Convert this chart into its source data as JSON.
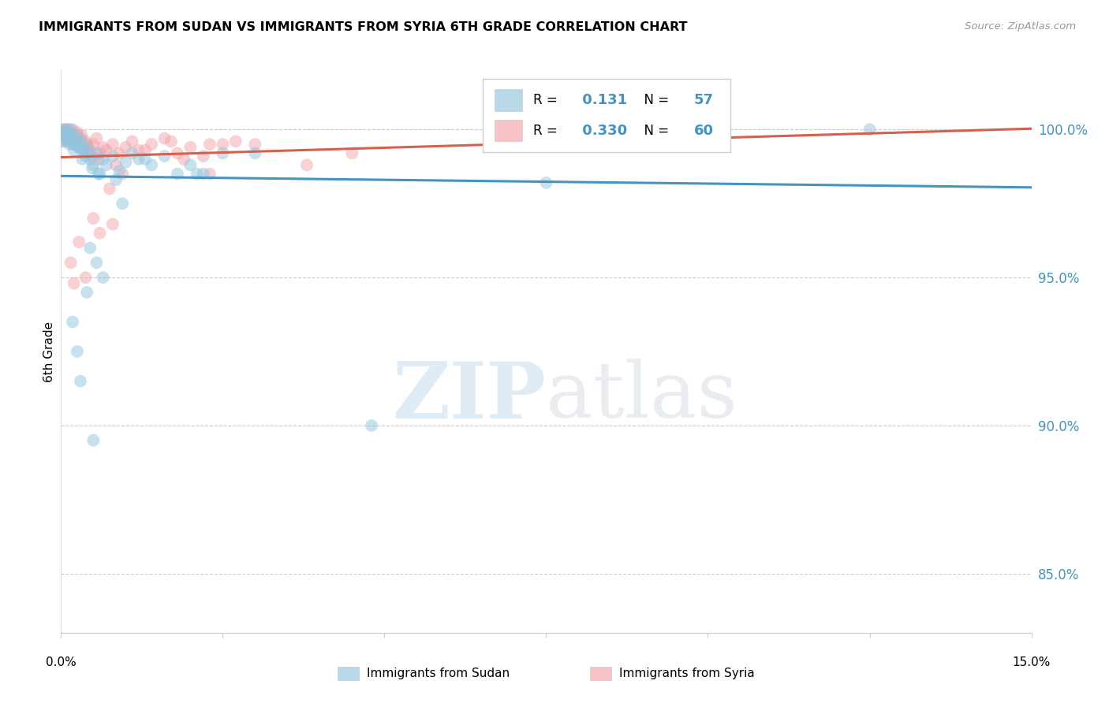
{
  "title": "IMMIGRANTS FROM SUDAN VS IMMIGRANTS FROM SYRIA 6TH GRADE CORRELATION CHART",
  "source": "Source: ZipAtlas.com",
  "ylabel": "6th Grade",
  "xlim": [
    0.0,
    15.0
  ],
  "ylim": [
    83.0,
    102.0
  ],
  "yticks": [
    85.0,
    90.0,
    95.0,
    100.0
  ],
  "ytick_labels": [
    "85.0%",
    "90.0%",
    "95.0%",
    "100.0%"
  ],
  "sudan_color": "#92c5de",
  "syria_color": "#f4a3a8",
  "sudan_line_color": "#4393c3",
  "syria_line_color": "#d6604d",
  "R_sudan": 0.131,
  "N_sudan": 57,
  "R_syria": 0.33,
  "N_syria": 60,
  "sudan_scatter_x": [
    0.02,
    0.03,
    0.05,
    0.06,
    0.07,
    0.08,
    0.09,
    0.1,
    0.11,
    0.12,
    0.13,
    0.14,
    0.15,
    0.16,
    0.17,
    0.18,
    0.19,
    0.2,
    0.22,
    0.24,
    0.25,
    0.27,
    0.3,
    0.32,
    0.35,
    0.38,
    0.4,
    0.45,
    0.5,
    0.55,
    0.6,
    0.65,
    0.7,
    0.8,
    0.9,
    1.0,
    1.1,
    1.2,
    1.4,
    1.6,
    1.8,
    2.0,
    2.2,
    2.5,
    0.28,
    0.33,
    0.42,
    0.48,
    0.58,
    1.3,
    0.85,
    0.95,
    3.0,
    4.8,
    7.5,
    10.0,
    12.5
  ],
  "sudan_scatter_y": [
    99.6,
    99.8,
    100.0,
    99.9,
    99.7,
    99.8,
    100.0,
    99.6,
    99.8,
    99.9,
    99.5,
    99.7,
    100.0,
    99.8,
    99.6,
    99.7,
    99.5,
    99.3,
    99.5,
    99.6,
    99.8,
    99.4,
    99.5,
    99.6,
    99.3,
    99.1,
    99.4,
    99.0,
    98.8,
    99.2,
    98.5,
    99.0,
    98.8,
    99.1,
    98.6,
    98.9,
    99.2,
    99.0,
    98.8,
    99.1,
    98.5,
    98.8,
    98.5,
    99.2,
    99.4,
    99.0,
    99.2,
    98.7,
    98.5,
    99.0,
    98.3,
    97.5,
    99.2,
    90.0,
    98.2,
    99.5,
    100.0
  ],
  "sudan_outlier_x": [
    0.18,
    0.25,
    0.3,
    0.4,
    0.45,
    0.55,
    0.65,
    2.1,
    0.5
  ],
  "sudan_outlier_y": [
    93.5,
    92.5,
    91.5,
    94.5,
    96.0,
    95.5,
    95.0,
    98.5,
    89.5
  ],
  "syria_scatter_x": [
    0.02,
    0.03,
    0.05,
    0.06,
    0.07,
    0.08,
    0.09,
    0.1,
    0.11,
    0.12,
    0.13,
    0.14,
    0.15,
    0.16,
    0.17,
    0.18,
    0.19,
    0.2,
    0.22,
    0.24,
    0.25,
    0.27,
    0.3,
    0.32,
    0.35,
    0.38,
    0.4,
    0.45,
    0.5,
    0.55,
    0.6,
    0.65,
    0.7,
    0.8,
    0.9,
    1.0,
    1.1,
    1.2,
    1.4,
    1.6,
    1.8,
    2.0,
    2.2,
    2.5,
    0.28,
    0.33,
    0.42,
    0.48,
    0.58,
    1.3,
    0.85,
    0.95,
    3.0,
    4.5,
    8.5,
    1.7,
    2.3,
    2.7,
    3.8,
    0.75
  ],
  "syria_scatter_y": [
    99.8,
    100.0,
    99.6,
    99.9,
    100.0,
    99.8,
    99.7,
    99.9,
    100.0,
    99.6,
    99.8,
    99.9,
    99.7,
    99.8,
    99.6,
    100.0,
    99.5,
    99.7,
    99.8,
    99.6,
    99.9,
    99.5,
    99.7,
    99.8,
    99.4,
    99.6,
    99.5,
    99.3,
    99.5,
    99.7,
    99.2,
    99.4,
    99.3,
    99.5,
    99.2,
    99.4,
    99.6,
    99.3,
    99.5,
    99.7,
    99.2,
    99.4,
    99.1,
    99.5,
    99.6,
    99.3,
    99.4,
    99.1,
    99.0,
    99.3,
    98.8,
    98.5,
    99.5,
    99.2,
    100.0,
    99.6,
    99.5,
    99.6,
    98.8,
    98.0
  ],
  "syria_outlier_x": [
    0.15,
    0.2,
    0.28,
    0.38,
    0.5,
    0.6,
    0.8,
    1.9,
    2.3
  ],
  "syria_outlier_y": [
    95.5,
    94.8,
    96.2,
    95.0,
    97.0,
    96.5,
    96.8,
    99.0,
    98.5
  ],
  "watermark_zip": "ZIP",
  "watermark_atlas": "atlas",
  "background_color": "#ffffff",
  "grid_color": "#cccccc",
  "legend_box_color": "#ffffff",
  "legend_border_color": "#cccccc"
}
